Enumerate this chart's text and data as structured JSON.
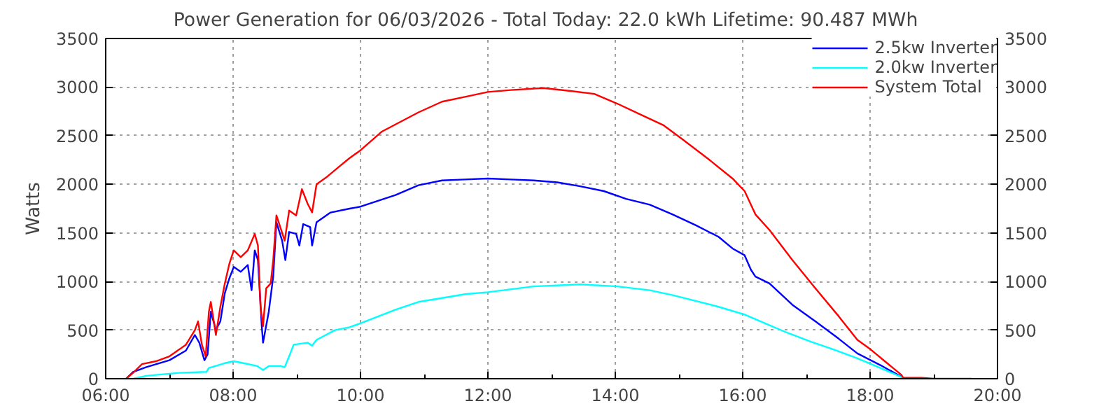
{
  "chart_data": {
    "type": "line",
    "title": "Power Generation for 06/03/2026 - Total Today: 22.0 kWh   Lifetime: 90.487 MWh",
    "ylabel": "Watts",
    "xlim": [
      6,
      20
    ],
    "xticks": [
      {
        "value": 6,
        "label": "06:00"
      },
      {
        "value": 8,
        "label": "08:00"
      },
      {
        "value": 10,
        "label": "10:00"
      },
      {
        "value": 12,
        "label": "12:00"
      },
      {
        "value": 14,
        "label": "14:00"
      },
      {
        "value": 16,
        "label": "16:00"
      },
      {
        "value": 18,
        "label": "18:00"
      },
      {
        "value": 20,
        "label": "20:00"
      }
    ],
    "ylim": [
      0,
      3500
    ],
    "yticks": [
      0,
      500,
      1000,
      1500,
      2000,
      2500,
      3000,
      3500
    ],
    "y2lim": [
      0,
      3500
    ],
    "y2ticks": [
      0,
      500,
      1000,
      1500,
      2000,
      2500,
      3000,
      3500
    ],
    "grid": true,
    "legend": "top right",
    "line_style": "solid",
    "marker": "none",
    "series": [
      {
        "name": "2.5kw Inverter",
        "color": "#0000ff",
        "x": [
          6.32,
          6.43,
          6.64,
          7.0,
          7.26,
          7.4,
          7.47,
          7.55,
          7.6,
          7.65,
          7.73,
          7.8,
          7.87,
          7.94,
          8.01,
          8.12,
          8.23,
          8.29,
          8.34,
          8.39,
          8.45,
          8.47,
          8.56,
          8.63,
          8.68,
          8.77,
          8.82,
          8.88,
          8.99,
          9.04,
          9.1,
          9.21,
          9.24,
          9.31,
          9.53,
          9.83,
          10.0,
          10.55,
          10.91,
          11.28,
          11.64,
          12.0,
          12.36,
          12.72,
          13.09,
          13.45,
          13.82,
          14.17,
          14.54,
          14.9,
          15.26,
          15.62,
          15.84,
          16.03,
          16.13,
          16.2,
          16.42,
          16.78,
          17.14,
          17.51,
          17.8,
          18.16,
          18.52
        ],
        "values": [
          0,
          70,
          120,
          190,
          290,
          450,
          370,
          190,
          250,
          690,
          500,
          590,
          880,
          1030,
          1150,
          1100,
          1170,
          910,
          1320,
          1220,
          540,
          370,
          690,
          1050,
          1610,
          1420,
          1220,
          1510,
          1490,
          1370,
          1590,
          1560,
          1370,
          1610,
          1710,
          1750,
          1770,
          1890,
          1990,
          2040,
          2050,
          2060,
          2050,
          2040,
          2020,
          1980,
          1930,
          1850,
          1790,
          1690,
          1580,
          1460,
          1340,
          1270,
          1120,
          1050,
          980,
          760,
          590,
          410,
          260,
          140,
          10
        ]
      },
      {
        "name": "2.0kw Inverter",
        "color": "#00ffff",
        "x": [
          6.43,
          6.64,
          7.15,
          7.58,
          7.62,
          7.87,
          8.01,
          8.16,
          8.38,
          8.47,
          8.56,
          8.74,
          8.81,
          8.88,
          8.95,
          9.17,
          9.24,
          9.31,
          9.6,
          9.83,
          10.0,
          10.55,
          10.91,
          11.28,
          11.64,
          12.0,
          12.72,
          13.45,
          14.03,
          14.54,
          14.9,
          15.62,
          16.03,
          16.35,
          16.71,
          17.07,
          17.43,
          17.8,
          18.16,
          18.52,
          18.59
        ],
        "values": [
          0,
          30,
          60,
          70,
          110,
          160,
          180,
          160,
          130,
          90,
          130,
          130,
          120,
          230,
          350,
          370,
          340,
          400,
          500,
          530,
          570,
          710,
          790,
          830,
          870,
          890,
          950,
          970,
          950,
          910,
          860,
          740,
          660,
          570,
          470,
          380,
          300,
          210,
          110,
          10,
          0
        ]
      },
      {
        "name": "System Total",
        "color": "#ff0000",
        "x": [
          6.32,
          6.43,
          6.57,
          6.79,
          7.0,
          7.26,
          7.4,
          7.45,
          7.51,
          7.57,
          7.62,
          7.65,
          7.73,
          7.8,
          7.87,
          7.94,
          8.01,
          8.12,
          8.23,
          8.34,
          8.39,
          8.43,
          8.47,
          8.52,
          8.59,
          8.63,
          8.68,
          8.74,
          8.81,
          8.88,
          8.99,
          9.08,
          9.17,
          9.24,
          9.31,
          9.46,
          9.68,
          9.83,
          10.0,
          10.33,
          10.91,
          11.28,
          11.64,
          12.0,
          12.36,
          12.87,
          13.3,
          13.67,
          14.03,
          14.39,
          14.75,
          15.04,
          15.48,
          15.84,
          16.03,
          16.2,
          16.42,
          16.78,
          17.14,
          17.51,
          17.8,
          18.01,
          18.23,
          18.49,
          18.52,
          18.81,
          19.0,
          19.6
        ],
        "values": [
          0,
          60,
          150,
          180,
          230,
          350,
          500,
          590,
          350,
          230,
          690,
          790,
          450,
          740,
          980,
          1180,
          1320,
          1250,
          1320,
          1490,
          1370,
          740,
          540,
          930,
          980,
          1220,
          1680,
          1560,
          1420,
          1730,
          1680,
          1950,
          1800,
          1710,
          2000,
          2070,
          2190,
          2270,
          2350,
          2540,
          2740,
          2850,
          2900,
          2950,
          2970,
          2990,
          2960,
          2930,
          2830,
          2720,
          2610,
          2470,
          2250,
          2060,
          1930,
          1690,
          1530,
          1220,
          930,
          640,
          400,
          300,
          180,
          40,
          10,
          10,
          0,
          0
        ]
      }
    ]
  }
}
